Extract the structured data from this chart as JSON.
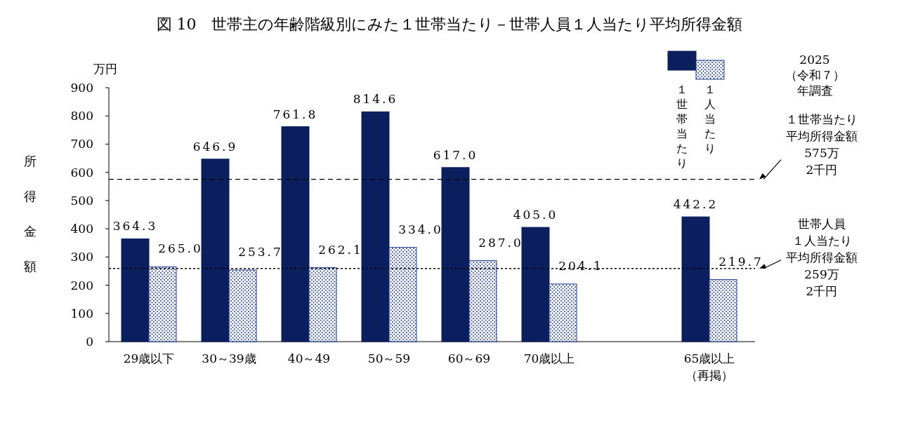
{
  "chart_data": {
    "type": "bar",
    "title": "図 10　世帯主の年齢階級別にみた１世帯当たり－世帯人員１人当たり平均所得金額",
    "ylabel": "所得金額",
    "legend_title": "2025（令和７）年調査",
    "annotations": [
      "万円"
    ],
    "categories": [
      "29歳以下",
      "30～39歳",
      "40～49",
      "50～59",
      "60～69",
      "70歳以上",
      null,
      "65歳以上（再掲）"
    ],
    "series": [
      {
        "name": "１世帯当たり",
        "color": "#0b1f5e",
        "values": [
          364.3,
          646.9,
          761.8,
          814.6,
          617.0,
          405.0,
          null,
          442.2
        ],
        "value_labels": [
          "364.3",
          "646.9",
          "761.8",
          "814.6",
          "617.0",
          "405.0",
          null,
          "442.2"
        ]
      },
      {
        "name": "１人当たり",
        "color": "#1a3a8a",
        "values": [
          265.0,
          253.7,
          262.1,
          334.0,
          287.0,
          204.1,
          null,
          219.7
        ],
        "value_labels": [
          "265.0",
          "253.7",
          "262.1",
          "334.0",
          "287.0",
          "204.1",
          null,
          "219.7"
        ]
      }
    ],
    "ylim": [
      0,
      900
    ],
    "yticks": [
      0,
      100,
      200,
      300,
      400,
      500,
      600,
      700,
      800,
      900
    ],
    "ref_lines": [
      {
        "axis": "y",
        "value": 575.2,
        "label": "１世帯当たり平均所得金額575万2千円",
        "line_style": "dashed",
        "color": "#000000"
      },
      {
        "axis": "y",
        "value": 259.2,
        "label": "世帯人員１人当たり平均所得金額259万2千円",
        "line_style": "dotted",
        "color": "#000000"
      }
    ],
    "grid": false,
    "legend": "top right"
  }
}
